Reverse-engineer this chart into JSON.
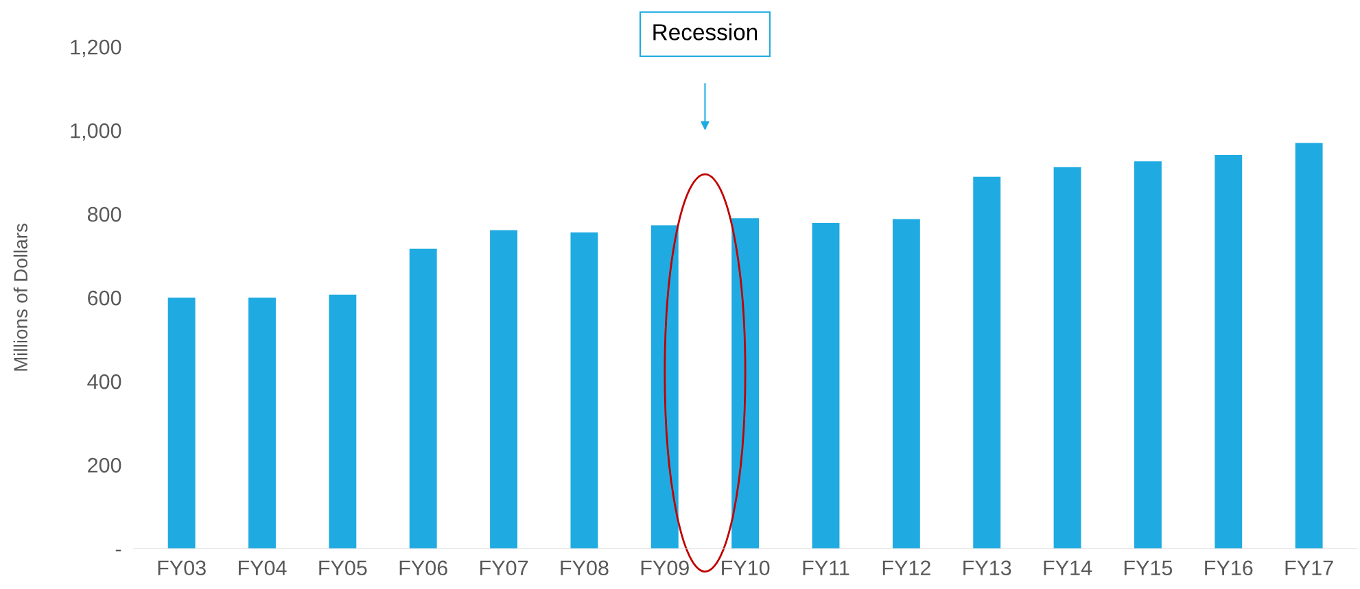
{
  "chart_data": {
    "type": "bar",
    "ylabel": "Millions of Dollars",
    "categories": [
      "FY03",
      "FY04",
      "FY05",
      "FY06",
      "FY07",
      "FY08",
      "FY09",
      "FY10",
      "FY11",
      "FY12",
      "FY13",
      "FY14",
      "FY15",
      "FY16",
      "FY17"
    ],
    "values": [
      600,
      600,
      607,
      717,
      761,
      756,
      773,
      790,
      779,
      788,
      889,
      912,
      926,
      941,
      970
    ],
    "color": "#1fabe1",
    "ylim": [
      0,
      1200
    ],
    "yticks": [
      {
        "value": 0,
        "label": "-"
      },
      {
        "value": 200,
        "label": "200"
      },
      {
        "value": 400,
        "label": "400"
      },
      {
        "value": 600,
        "label": "600"
      },
      {
        "value": 800,
        "label": "800"
      },
      {
        "value": 1000,
        "label": "1,000"
      },
      {
        "value": 1200,
        "label": "1,200"
      }
    ],
    "grid": false,
    "legend": false,
    "annotations": [
      "Recession"
    ]
  }
}
